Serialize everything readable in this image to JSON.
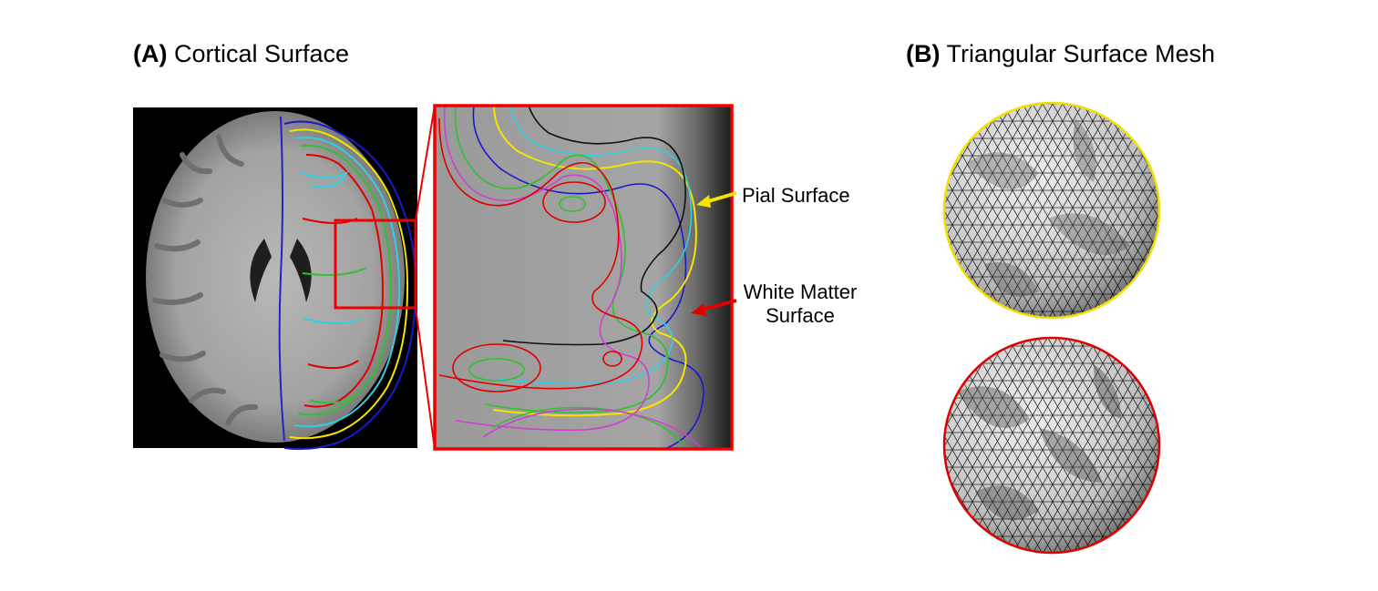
{
  "panel_a": {
    "letter": "(A)",
    "title": "Cortical Surface"
  },
  "panel_b": {
    "letter": "(B)",
    "title": "Triangular Surface Mesh"
  },
  "annotations": {
    "pial_label": "Pial Surface",
    "white_matter_label_line1": "White Matter",
    "white_matter_label_line2": "Surface"
  },
  "colors": {
    "pial": "#f5e400",
    "white_matter": "#e00000",
    "contour_blue": "#1a1acc",
    "contour_cyan": "#30d0e0",
    "contour_green": "#30c030",
    "contour_magenta": "#d040d0",
    "contour_black": "#111111"
  },
  "icons": {
    "brain_slice": "mri-axial-brain-slice",
    "zoom_view": "zoomed-cortex-contours",
    "mesh_pial": "pial-mesh-circle",
    "mesh_white": "white-matter-mesh-circle"
  }
}
